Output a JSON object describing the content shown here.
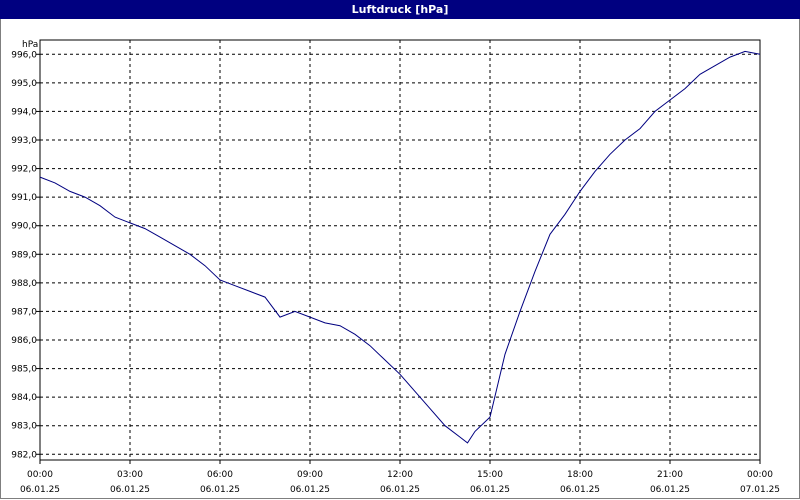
{
  "window": {
    "title": "Luftdruck [hPa]"
  },
  "chart_data": {
    "type": "line",
    "title": "Luftdruck [hPa]",
    "ylabel": "hPa",
    "xlabel": "",
    "ylim": [
      981.8,
      996.5
    ],
    "xlim": [
      "06.01.25 00:00",
      "07.01.25 00:00"
    ],
    "grid": true,
    "yticks": [
      982.0,
      983.0,
      984.0,
      985.0,
      986.0,
      987.0,
      988.0,
      989.0,
      990.0,
      991.0,
      992.0,
      993.0,
      994.0,
      995.0,
      996.0
    ],
    "ytick_labels": [
      "982,0",
      "983,0",
      "984,0",
      "985,0",
      "986,0",
      "987,0",
      "988,0",
      "989,0",
      "990,0",
      "991,0",
      "992,0",
      "993,0",
      "994,0",
      "995,0",
      "996,0"
    ],
    "xticks": [
      {
        "time": "00:00",
        "date": "06.01.25"
      },
      {
        "time": "03:00",
        "date": "06.01.25"
      },
      {
        "time": "06:00",
        "date": "06.01.25"
      },
      {
        "time": "09:00",
        "date": "06.01.25"
      },
      {
        "time": "12:00",
        "date": "06.01.25"
      },
      {
        "time": "15:00",
        "date": "06.01.25"
      },
      {
        "time": "18:00",
        "date": "06.01.25"
      },
      {
        "time": "21:00",
        "date": "06.01.25"
      },
      {
        "time": "00:00",
        "date": "07.01.25"
      }
    ],
    "series": [
      {
        "color": "#000080",
        "x": [
          "06.01.25 00:00",
          "06.01.25 00:30",
          "06.01.25 01:00",
          "06.01.25 01:30",
          "06.01.25 02:00",
          "06.01.25 02:30",
          "06.01.25 03:00",
          "06.01.25 03:30",
          "06.01.25 04:00",
          "06.01.25 04:30",
          "06.01.25 05:00",
          "06.01.25 05:30",
          "06.01.25 06:00",
          "06.01.25 06:30",
          "06.01.25 07:00",
          "06.01.25 07:30",
          "06.01.25 08:00",
          "06.01.25 08:30",
          "06.01.25 09:00",
          "06.01.25 09:30",
          "06.01.25 10:00",
          "06.01.25 10:30",
          "06.01.25 11:00",
          "06.01.25 11:30",
          "06.01.25 12:00",
          "06.01.25 12:30",
          "06.01.25 13:00",
          "06.01.25 13:30",
          "06.01.25 14:00",
          "06.01.25 14:15",
          "06.01.25 14:30",
          "06.01.25 15:00",
          "06.01.25 15:30",
          "06.01.25 16:00",
          "06.01.25 16:30",
          "06.01.25 17:00",
          "06.01.25 17:30",
          "06.01.25 18:00",
          "06.01.25 18:30",
          "06.01.25 19:00",
          "06.01.25 19:30",
          "06.01.25 20:00",
          "06.01.25 20:30",
          "06.01.25 21:00",
          "06.01.25 21:30",
          "06.01.25 22:00",
          "06.01.25 22:30",
          "06.01.25 23:00",
          "06.01.25 23:30",
          "07.01.25 00:00"
        ],
        "values": [
          991.7,
          991.5,
          991.2,
          991.0,
          990.7,
          990.3,
          990.1,
          989.9,
          989.6,
          989.3,
          989.0,
          988.6,
          988.1,
          987.9,
          987.7,
          987.5,
          986.8,
          987.0,
          986.8,
          986.6,
          986.5,
          986.2,
          985.8,
          985.3,
          984.8,
          984.2,
          983.6,
          983.0,
          982.6,
          982.4,
          982.8,
          983.3,
          985.5,
          987.0,
          988.4,
          989.7,
          990.4,
          991.2,
          991.9,
          992.5,
          993.0,
          993.4,
          994.0,
          994.4,
          994.8,
          995.3,
          995.6,
          995.9,
          996.1,
          996.0
        ]
      }
    ]
  }
}
